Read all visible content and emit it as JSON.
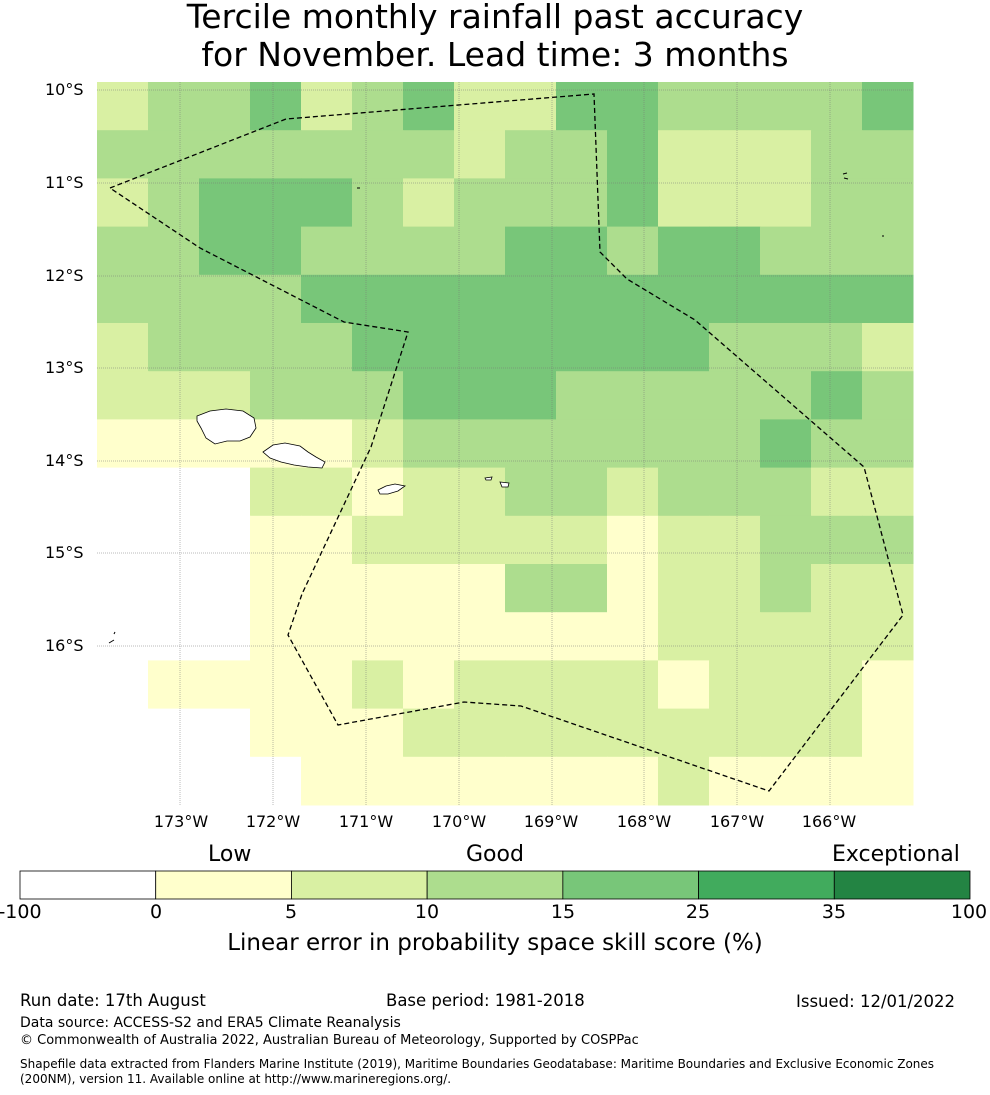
{
  "title_line1": "Tercile monthly rainfall past accuracy",
  "title_line2": "for November. Lead time: 3 months",
  "lat_labels": [
    "10°S",
    "11°S",
    "12°S",
    "13°S",
    "14°S",
    "15°S",
    "16°S"
  ],
  "lon_labels": [
    "173°W",
    "172°W",
    "171°W",
    "170°W",
    "169°W",
    "168°W",
    "167°W",
    "166°W"
  ],
  "colorbar": {
    "categories": [
      "Low",
      "Good",
      "Exceptional"
    ],
    "ticks": [
      "-100",
      "0",
      "5",
      "10",
      "15",
      "25",
      "35",
      "100"
    ],
    "colors": [
      "#ffffff",
      "#ffffcc",
      "#d9f0a3",
      "#addd8e",
      "#78c679",
      "#41ab5d",
      "#238443"
    ],
    "title": "Linear error in probability space skill score (%)"
  },
  "grid_colors": [
    "#ffffff",
    "#ffffcc",
    "#d9f0a3",
    "#addd8e",
    "#78c679",
    "#41ab5d",
    "#238443"
  ],
  "grid": [
    [
      2,
      3,
      3,
      4,
      2,
      3,
      4,
      2,
      2,
      4,
      4,
      3,
      3,
      3,
      3,
      4
    ],
    [
      3,
      3,
      3,
      3,
      3,
      3,
      3,
      2,
      3,
      3,
      4,
      2,
      2,
      2,
      3,
      3,
      4
    ],
    [
      2,
      3,
      4,
      4,
      4,
      3,
      2,
      3,
      3,
      3,
      4,
      2,
      2,
      2,
      3,
      3,
      3
    ],
    [
      3,
      3,
      4,
      4,
      3,
      3,
      3,
      3,
      4,
      4,
      3,
      4,
      4,
      3,
      3,
      3
    ],
    [
      3,
      3,
      3,
      3,
      4,
      4,
      4,
      4,
      4,
      4,
      4,
      4,
      4,
      4,
      4,
      4,
      3
    ],
    [
      2,
      3,
      3,
      3,
      3,
      4,
      4,
      4,
      4,
      4,
      4,
      4,
      3,
      3,
      3,
      2
    ],
    [
      2,
      2,
      2,
      3,
      3,
      3,
      4,
      4,
      4,
      3,
      3,
      3,
      3,
      3,
      4,
      3
    ],
    [
      1,
      1,
      1,
      1,
      1,
      2,
      3,
      3,
      3,
      3,
      3,
      3,
      3,
      4,
      3,
      3
    ],
    [
      0,
      0,
      0,
      2,
      2,
      1,
      2,
      2,
      3,
      3,
      2,
      3,
      3,
      3,
      2,
      2
    ],
    [
      0,
      0,
      0,
      1,
      1,
      2,
      2,
      2,
      2,
      2,
      1,
      2,
      2,
      3,
      3,
      3,
      3
    ],
    [
      0,
      0,
      0,
      1,
      1,
      1,
      1,
      1,
      3,
      3,
      1,
      2,
      2,
      3,
      2,
      2
    ],
    [
      0,
      0,
      0,
      1,
      1,
      1,
      1,
      1,
      1,
      1,
      1,
      2,
      2,
      2,
      2,
      2
    ],
    [
      0,
      1,
      1,
      1,
      1,
      2,
      1,
      2,
      2,
      2,
      2,
      1,
      2,
      2,
      2,
      1
    ],
    [
      0,
      0,
      0,
      1,
      1,
      1,
      2,
      2,
      2,
      2,
      2,
      2,
      2,
      2,
      2,
      1
    ],
    [
      0,
      0,
      0,
      0,
      1,
      1,
      1,
      1,
      1,
      1,
      1,
      2,
      1,
      1,
      1,
      1
    ]
  ],
  "footer": {
    "run_date": "Run date: 17th August",
    "base_period": "Base period: 1981-2018",
    "issued": "Issued: 12/01/2022",
    "data_source": "Data source: ACCESS-S2 and ERA5 Climate Reanalysis",
    "copyright": "© Commonwealth of Australia 2022, Australian Bureau of Meteorology, Supported by COSPPac",
    "shapefile": "Shapefile data extracted from Flanders Marine Institute (2019), Maritime Boundaries Geodatabase: Maritime Boundaries and Exclusive Economic Zones (200NM), version 11. Available online at http://www.marineregions.org/."
  }
}
